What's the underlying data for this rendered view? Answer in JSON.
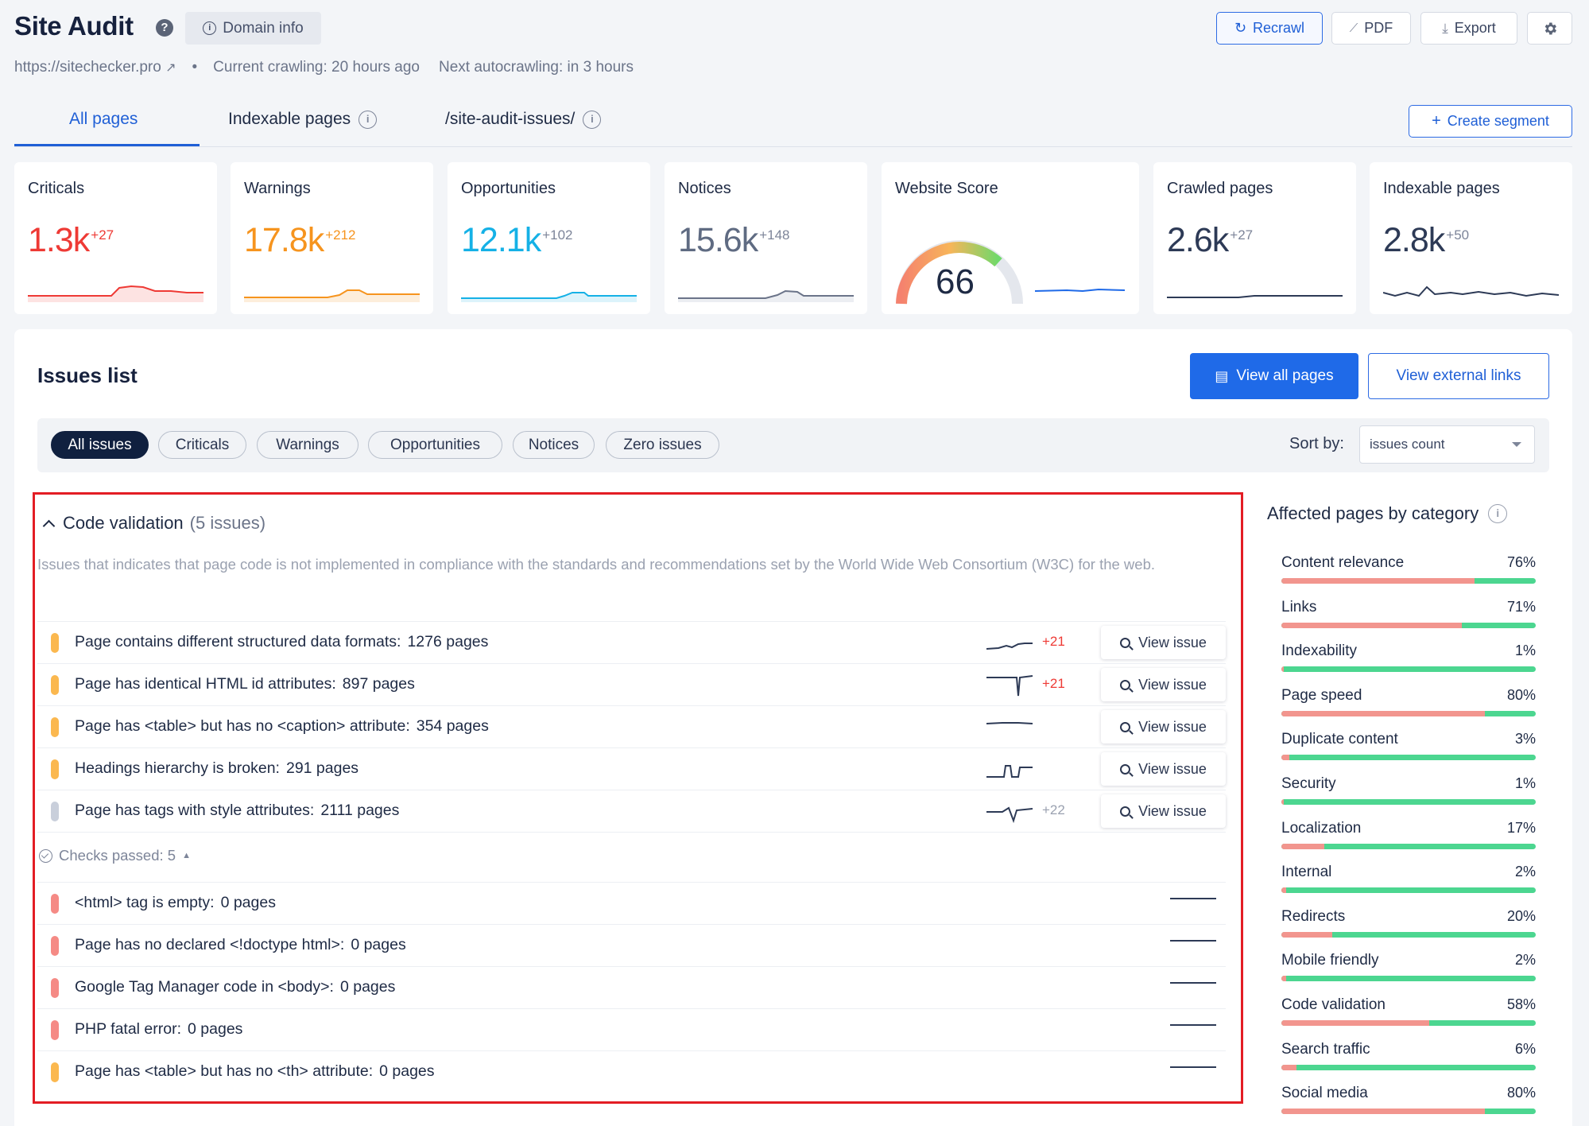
{
  "header": {
    "title": "Site Audit",
    "domain_info": "Domain info",
    "site_url": "https://sitechecker.pro",
    "bullet": "•",
    "current_crawling": "Current crawling: 20 hours ago",
    "next_autocrawling": "Next autocrawling: in 3 hours",
    "buttons": {
      "recrawl": "Recrawl",
      "pdf": "PDF",
      "export": "Export"
    }
  },
  "tabs": [
    {
      "label": "All pages",
      "active": true
    },
    {
      "label": "Indexable pages",
      "active": false
    },
    {
      "label": "/site-audit-issues/",
      "active": false
    }
  ],
  "create_segment": "Create segment",
  "stats": [
    {
      "label": "Criticals",
      "value": "1.3k",
      "delta": "+27",
      "color": "#ee3a35"
    },
    {
      "label": "Warnings",
      "value": "17.8k",
      "delta": "+212",
      "color": "#f6941e"
    },
    {
      "label": "Opportunities",
      "value": "12.1k",
      "delta": "+102",
      "color": "#15b1e6"
    },
    {
      "label": "Notices",
      "value": "15.6k",
      "delta": "+148",
      "color": "#5f6b82"
    },
    {
      "label": "Website Score",
      "value": "66",
      "color": "#1f6ae8"
    },
    {
      "label": "Crawled pages",
      "value": "2.6k",
      "delta": "+27",
      "color": "#2d3a56"
    },
    {
      "label": "Indexable pages",
      "value": "2.8k",
      "delta": "+50",
      "color": "#2d3a56"
    }
  ],
  "issues": {
    "title": "Issues list",
    "view_all_pages": "View all pages",
    "view_external_links": "View external links",
    "filters": [
      "All issues",
      "Criticals",
      "Warnings",
      "Opportunities",
      "Notices",
      "Zero issues"
    ],
    "sort_label": "Sort by:",
    "sort_value": "issues count",
    "group": {
      "name": "Code validation",
      "count": "(5 issues)",
      "description": "Issues that indicates that page code is not implemented in compliance with the standards and recommendations set by the World Wide Web Consortium (W3C) for the web.",
      "view_issue": "View issue",
      "rows": [
        {
          "text": "Page contains different structured data formats:",
          "pages": "1276 pages",
          "delta": "+21",
          "severity": "#fbb84f",
          "delta_color": "#ee3a35"
        },
        {
          "text": "Page has identical HTML id attributes:",
          "pages": "897 pages",
          "delta": "+21",
          "severity": "#fbb84f",
          "delta_color": "#ee3a35"
        },
        {
          "text": "Page has <table> but has no <caption> attribute:",
          "pages": "354 pages",
          "delta": "",
          "severity": "#fbb84f",
          "delta_color": "#ee3a35"
        },
        {
          "text": "Headings hierarchy is broken:",
          "pages": "291 pages",
          "delta": "",
          "severity": "#fbb84f",
          "delta_color": "#ee3a35"
        },
        {
          "text": "Page has tags with style attributes:",
          "pages": "2111 pages",
          "delta": "+22",
          "severity": "#c9cfdb",
          "delta_color": "#9aa1b0"
        }
      ],
      "checks_passed": "Checks passed: 5",
      "passed_rows": [
        {
          "text": "<html> tag is empty:",
          "pages": "0 pages",
          "severity": "#f58a85"
        },
        {
          "text": "Page has no declared <!doctype html>:",
          "pages": "0 pages",
          "severity": "#f58a85"
        },
        {
          "text": "Google Tag Manager code in <body>:",
          "pages": "0 pages",
          "severity": "#f58a85"
        },
        {
          "text": "PHP fatal error:",
          "pages": "0 pages",
          "severity": "#f58a85"
        },
        {
          "text": "Page has <table> but has no <th> attribute:",
          "pages": "0 pages",
          "severity": "#fbb84f"
        }
      ]
    }
  },
  "categories": {
    "title": "Affected pages by category",
    "items": [
      {
        "name": "Content relevance",
        "pct": "76%",
        "value": 76
      },
      {
        "name": "Links",
        "pct": "71%",
        "value": 71
      },
      {
        "name": "Indexability",
        "pct": "1%",
        "value": 1
      },
      {
        "name": "Page speed",
        "pct": "80%",
        "value": 80
      },
      {
        "name": "Duplicate content",
        "pct": "3%",
        "value": 3
      },
      {
        "name": "Security",
        "pct": "1%",
        "value": 1
      },
      {
        "name": "Localization",
        "pct": "17%",
        "value": 17
      },
      {
        "name": "Internal",
        "pct": "2%",
        "value": 2
      },
      {
        "name": "Redirects",
        "pct": "20%",
        "value": 20
      },
      {
        "name": "Mobile friendly",
        "pct": "2%",
        "value": 2
      },
      {
        "name": "Code validation",
        "pct": "58%",
        "value": 58
      },
      {
        "name": "Search traffic",
        "pct": "6%",
        "value": 6
      },
      {
        "name": "Social media",
        "pct": "80%",
        "value": 80
      }
    ]
  }
}
